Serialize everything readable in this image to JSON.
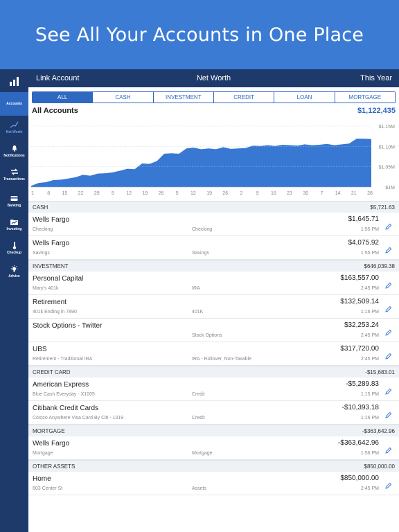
{
  "banner": {
    "title": "See All Your Accounts in One Place"
  },
  "sidebar": {
    "items": [
      {
        "label": "Accounts",
        "icon": "bar-chart-icon"
      },
      {
        "label": "Net Worth",
        "icon": "trend-icon"
      },
      {
        "label": "Notifications",
        "icon": "bell-icon"
      },
      {
        "label": "Transactions",
        "icon": "transfer-arrows-icon"
      },
      {
        "label": "Banking",
        "icon": "wallet-icon"
      },
      {
        "label": "Investing",
        "icon": "chart-folder-icon"
      },
      {
        "label": "Checkup",
        "icon": "thermometer-icon"
      },
      {
        "label": "Advice",
        "icon": "lightbulb-icon"
      }
    ]
  },
  "topbar": {
    "left": "Link Account",
    "center": "Net Worth",
    "right": "This Year"
  },
  "filters": [
    "ALL",
    "CASH",
    "INVESTMENT",
    "CREDIT",
    "LOAN",
    "MORTGAGE"
  ],
  "summary": {
    "title": "All Accounts",
    "total": "$1,122,435"
  },
  "chart_data": {
    "type": "area",
    "title": "",
    "xlabel": "",
    "ylabel": "",
    "x_tick_labels": [
      "1",
      "8",
      "15",
      "22",
      "29",
      "5",
      "12",
      "19",
      "26",
      "5",
      "12",
      "19",
      "26",
      "2",
      "9",
      "16",
      "23",
      "30",
      "7",
      "14",
      "21",
      "28"
    ],
    "y_tick_labels": [
      "$1M",
      "$1.05M",
      "$1.10M",
      "$1.15M"
    ],
    "ylim": [
      1000000,
      1150000
    ],
    "grid": true,
    "values": [
      1003000,
      1010000,
      1012000,
      1017000,
      1018000,
      1021000,
      1024000,
      1030000,
      1028000,
      1033000,
      1034000,
      1036000,
      1040000,
      1045000,
      1044000,
      1058000,
      1057000,
      1064000,
      1082000,
      1083000,
      1082000,
      1095000,
      1097000,
      1093000,
      1095000,
      1093000,
      1098000,
      1094000,
      1095000,
      1096000,
      1102000,
      1101000,
      1103000,
      1101000,
      1104000,
      1103000,
      1102000,
      1105000,
      1103000,
      1104000,
      1106000,
      1103000,
      1105000,
      1107000,
      1119000,
      1119000,
      1118000
    ],
    "color": "#3878d3"
  },
  "colors": {
    "accent": "#2f68c0",
    "sidebar": "#1d3a6b",
    "banner": "#3b7bd4"
  },
  "sections": [
    {
      "name": "CASH",
      "total": "$5,721.63",
      "rows": [
        {
          "name": "Wells Fargo",
          "sub": "Checking",
          "type": "Checking",
          "amount": "$1,645.71",
          "time": "1:55 PM"
        },
        {
          "name": "Wells Fargo",
          "sub": "Savings",
          "type": "Savings",
          "amount": "$4,075.92",
          "time": "1:55 PM"
        }
      ]
    },
    {
      "name": "INVESTMENT",
      "total": "$646,039.38",
      "rows": [
        {
          "name": "Personal Capital",
          "sub": "Mary's 401k",
          "type": "IRA",
          "amount": "$163,557.00",
          "time": "2:45 PM"
        },
        {
          "name": "Retirement",
          "sub": "401k Ending in 7890",
          "type": "401K",
          "amount": "$132,509.14",
          "time": "1:16 PM"
        },
        {
          "name": "Stock Options - Twitter",
          "sub": "",
          "type": "Stock Options",
          "amount": "$32,253.24",
          "time": "2:45 PM"
        },
        {
          "name": "UBS",
          "sub": "Retirement - Traditional IRA",
          "type": "IRA - Rollover, Non-Taxable",
          "amount": "$317,720.00",
          "time": "2:45 PM"
        }
      ]
    },
    {
      "name": "CREDIT CARD",
      "total": "-$15,683.01",
      "rows": [
        {
          "name": "American Express",
          "sub": "Blue Cash Everyday - X1005",
          "type": "Credit",
          "amount": "-$5,289.83",
          "time": "1:15 PM"
        },
        {
          "name": "Citibank Credit Cards",
          "sub": "Costco Anywhere Visa Card By Citi - 1319",
          "type": "Credit",
          "amount": "-$10,393.18",
          "time": "1:16 PM"
        }
      ]
    },
    {
      "name": "MORTGAGE",
      "total": "-$363,642.96",
      "rows": [
        {
          "name": "Wells Fargo",
          "sub": "Mortgage",
          "type": "Mortgage",
          "amount": "-$363,642.96",
          "time": "1:56 PM"
        }
      ]
    },
    {
      "name": "OTHER ASSETS",
      "total": "$850,000.00",
      "rows": [
        {
          "name": "Home",
          "sub": "603 Center St",
          "type": "Assets",
          "amount": "$850,000.00",
          "time": "2:45 PM"
        }
      ]
    }
  ]
}
